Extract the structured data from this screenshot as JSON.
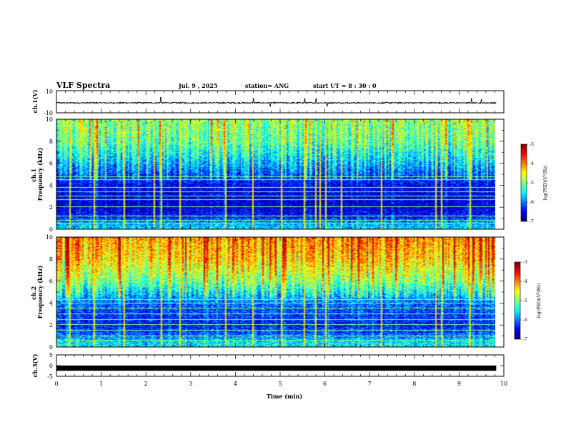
{
  "header": {
    "title": "VLF Spectra",
    "date": "Jul. 9 , 2025",
    "station": "station= ANG",
    "start": "start UT =  8 : 30 : 0"
  },
  "colors": {
    "background": "#ffffff",
    "axes": "#000000",
    "waveform": "#000000"
  },
  "chart_data": [
    {
      "type": "line",
      "name": "ch1-waveform",
      "ylabel": "ch.1(V)",
      "ylim": [
        -10,
        10
      ],
      "yticks": [
        "10",
        "-10"
      ],
      "xlim": [
        0,
        10
      ],
      "baseline": -1,
      "noise_amplitude": 0.6,
      "spikes": [
        {
          "x": 2.33,
          "y": 4
        },
        {
          "x": 4.4,
          "y": 3
        },
        {
          "x": 5.55,
          "y": 3
        },
        {
          "x": 5.8,
          "y": 3
        },
        {
          "x": 9.28,
          "y": 3
        },
        {
          "x": 9.5,
          "y": 2
        },
        {
          "x": 4.78,
          "y": -4
        },
        {
          "x": 6.05,
          "y": -4
        }
      ]
    },
    {
      "type": "heatmap",
      "name": "ch1-spectrogram",
      "ylabel": "ch.1 Frequency (kHz)",
      "ylim": [
        0,
        10
      ],
      "yticks": [
        "0",
        "2",
        "4",
        "6",
        "8",
        "10"
      ],
      "xlim": [
        0,
        9.83
      ],
      "colorbar": {
        "label": "log(PSD)(V²/Hz)",
        "range": [
          -7,
          -3
        ],
        "ticks": [
          "-3",
          "-4",
          "-5",
          "-6",
          "-7"
        ]
      },
      "mean_log_psd_by_freq": {
        "kHz": [
          0,
          0.5,
          1,
          2,
          3,
          4,
          4.8,
          6,
          8,
          10
        ],
        "value": [
          -5.7,
          -5.9,
          -6.5,
          -6.9,
          -6.8,
          -6.7,
          -6.3,
          -5.8,
          -5.1,
          -4.9
        ]
      },
      "horizontal_lines_kHz": [
        0.5,
        0.8,
        1.2,
        2.0,
        2.7,
        3.0,
        3.4,
        3.8,
        4.5,
        4.8
      ],
      "vertical_spike_times_min": [
        0.3,
        0.85,
        1.5,
        2.2,
        2.33,
        2.75,
        3.8,
        4.4,
        5.05,
        5.55,
        5.8,
        5.9,
        6.05,
        6.4,
        7.3,
        8.5,
        8.65,
        9.28
      ]
    },
    {
      "type": "heatmap",
      "name": "ch2-spectrogram",
      "ylabel": "ch.2 Frequency (kHz)",
      "ylim": [
        0,
        10
      ],
      "yticks": [
        "0",
        "2",
        "4",
        "6",
        "8",
        "10"
      ],
      "xlim": [
        0,
        9.83
      ],
      "colorbar": {
        "label": "log(PSD)(V²/Hz)",
        "range": [
          -7,
          -3
        ],
        "ticks": [
          "-3",
          "-4",
          "-5",
          "-6",
          "-7"
        ]
      },
      "mean_log_psd_by_freq": {
        "kHz": [
          0,
          0.5,
          1,
          2,
          3,
          4,
          4.8,
          6,
          8,
          10
        ],
        "value": [
          -5.6,
          -5.7,
          -6.2,
          -6.6,
          -6.4,
          -6.2,
          -5.7,
          -5.0,
          -4.3,
          -4.0
        ]
      },
      "horizontal_lines_kHz": [
        0.6,
        1.0,
        1.5,
        2.0,
        2.5,
        3.0,
        3.5,
        4.0,
        4.3
      ],
      "vertical_spike_times_min": [
        0.3,
        0.85,
        1.5,
        2.33,
        2.75,
        3.8,
        4.4,
        5.05,
        5.55,
        5.8,
        6.05,
        7.3,
        8.5,
        8.65,
        9.28
      ]
    },
    {
      "type": "line",
      "name": "ch3-waveform",
      "ylabel": "ch.3(V)",
      "ylim": [
        -5,
        5
      ],
      "yticks": [
        "5",
        "0",
        "-5"
      ],
      "xlim": [
        0,
        10
      ],
      "xlabel": "Time (min)",
      "xticks": [
        "0",
        "1",
        "2",
        "3",
        "4",
        "5",
        "6",
        "7",
        "8",
        "9",
        "10"
      ],
      "baseline": -1.2,
      "thickness_volts": 0.7
    }
  ]
}
